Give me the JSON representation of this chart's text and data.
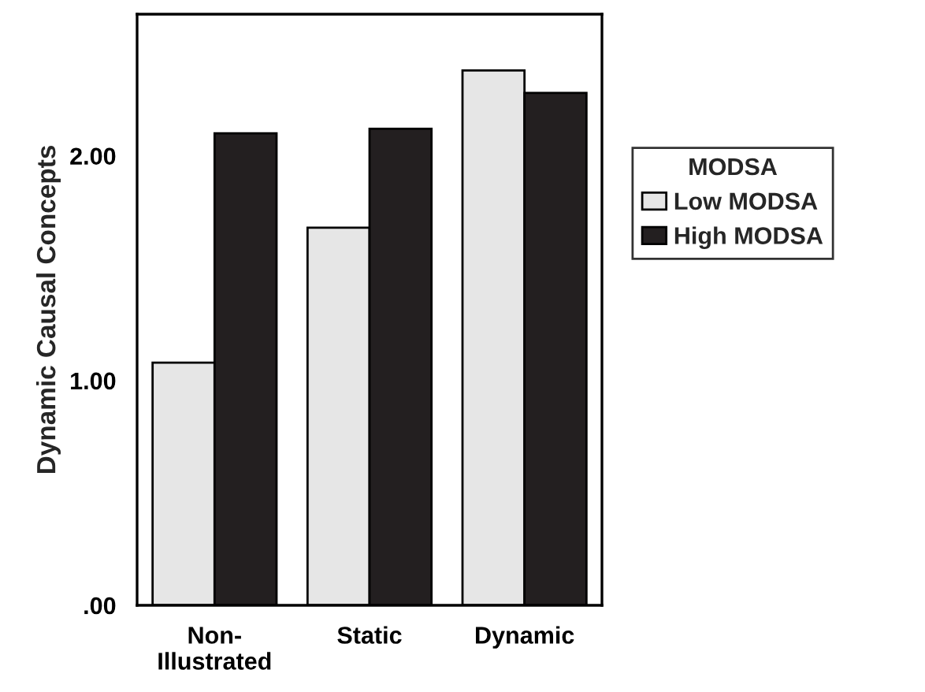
{
  "chart_data": {
    "type": "bar",
    "ylabel": "Dynamic Causal Concepts",
    "legend_title": "MODSA",
    "categories": [
      "Non-\nIllustrated",
      "Static",
      "Dynamic"
    ],
    "series": [
      {
        "name": "Low MODSA",
        "color": "#e6e6e6",
        "values": [
          1.08,
          1.68,
          2.38
        ]
      },
      {
        "name": "High MODSA",
        "color": "#231f20",
        "values": [
          2.1,
          2.12,
          2.28
        ]
      }
    ],
    "ylim": [
      0,
      2.63
    ],
    "yticks": [
      {
        "value": 0,
        "label": ".00"
      },
      {
        "value": 1,
        "label": "1.00"
      },
      {
        "value": 2,
        "label": "2.00"
      }
    ],
    "grid": false,
    "legend": "right"
  }
}
